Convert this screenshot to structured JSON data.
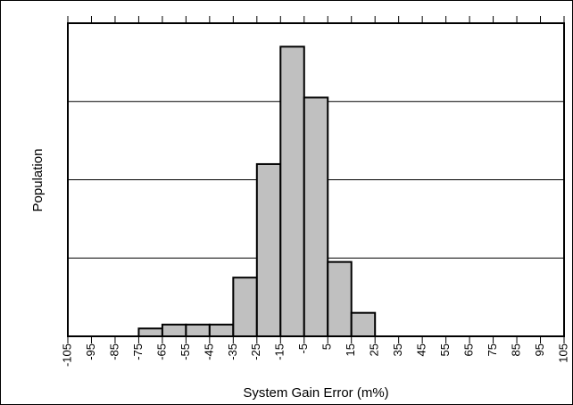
{
  "chart_data": {
    "type": "bar",
    "title": "",
    "xlabel": "System Gain Error (m%)",
    "ylabel": "Population",
    "xlim": [
      -105,
      105
    ],
    "x_ticks": [
      "-105",
      "-95",
      "-85",
      "-75",
      "-65",
      "-55",
      "-45",
      "-35",
      "-25",
      "-15",
      "-5",
      "5",
      "15",
      "25",
      "35",
      "45",
      "55",
      "65",
      "75",
      "85",
      "95",
      "105"
    ],
    "bin_width": 10,
    "bins": [
      {
        "x0": -75,
        "x1": -65,
        "value": 2
      },
      {
        "x0": -65,
        "x1": -55,
        "value": 3
      },
      {
        "x0": -55,
        "x1": -45,
        "value": 3
      },
      {
        "x0": -45,
        "x1": -35,
        "value": 3
      },
      {
        "x0": -35,
        "x1": -25,
        "value": 15
      },
      {
        "x0": -25,
        "x1": -15,
        "value": 44
      },
      {
        "x0": -15,
        "x1": -5,
        "value": 74
      },
      {
        "x0": -5,
        "x1": 5,
        "value": 61
      },
      {
        "x0": 5,
        "x1": 15,
        "value": 19
      },
      {
        "x0": 15,
        "x1": 25,
        "value": 6
      }
    ],
    "ylim": [
      0,
      80
    ],
    "y_gridlines": [
      20,
      40,
      60
    ],
    "y_tick_labels_shown": false,
    "grid": "horizontal",
    "legend": "none",
    "colors": {
      "bar_fill": "#c0c0c0",
      "bar_stroke": "#000000",
      "grid": "#000000",
      "background": "#ffffff"
    }
  }
}
